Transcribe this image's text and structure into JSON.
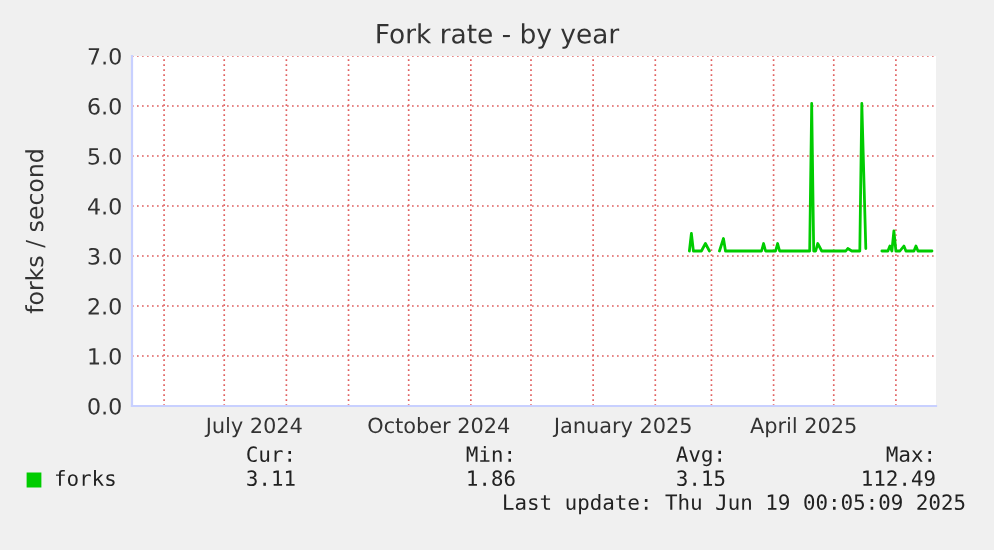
{
  "chart_data": {
    "type": "line",
    "title": "Fork rate - by year",
    "ylabel": "forks / second",
    "x": [
      "2025-02-18",
      "2025-02-19",
      "2025-02-20",
      "2025-02-24",
      "2025-02-26",
      "2025-02-28",
      "2025-03-02",
      "2025-03-05",
      "2025-03-07",
      "2025-03-08",
      "2025-03-26",
      "2025-03-27",
      "2025-03-28",
      "2025-04-02",
      "2025-04-03",
      "2025-04-04",
      "2025-04-19",
      "2025-04-20",
      "2025-04-21",
      "2025-04-22",
      "2025-04-23",
      "2025-04-25",
      "2025-05-07",
      "2025-05-08",
      "2025-05-10",
      "2025-05-14",
      "2025-05-15",
      "2025-05-17",
      "2025-05-18",
      "2025-05-25",
      "2025-05-28",
      "2025-05-29",
      "2025-05-30",
      "2025-05-31",
      "2025-06-01",
      "2025-06-03",
      "2025-06-05",
      "2025-06-06",
      "2025-06-10",
      "2025-06-11",
      "2025-06-12",
      "2025-06-19"
    ],
    "series": [
      {
        "name": "forks",
        "color": "#00cc00",
        "values": [
          3.1,
          3.45,
          3.1,
          3.1,
          3.25,
          3.1,
          null,
          3.1,
          3.35,
          3.1,
          3.1,
          3.25,
          3.1,
          3.1,
          3.25,
          3.1,
          3.1,
          6.05,
          3.1,
          3.1,
          3.25,
          3.1,
          3.1,
          3.15,
          3.1,
          3.1,
          6.05,
          3.15,
          null,
          3.1,
          3.1,
          3.2,
          3.1,
          3.5,
          3.1,
          3.1,
          3.2,
          3.1,
          3.1,
          3.2,
          3.1,
          3.1
        ]
      }
    ],
    "xlim": [
      "2024-05-16",
      "2025-06-21"
    ],
    "xticks": [
      {
        "value": "2024-06-01",
        "label": null
      },
      {
        "value": "2024-07-01",
        "label": null
      },
      {
        "value": "2024-07-16",
        "label": "July 2024"
      },
      {
        "value": "2024-08-01",
        "label": null
      },
      {
        "value": "2024-09-01",
        "label": null
      },
      {
        "value": "2024-10-01",
        "label": null
      },
      {
        "value": "2024-10-16",
        "label": "October 2024"
      },
      {
        "value": "2024-11-01",
        "label": null
      },
      {
        "value": "2024-12-01",
        "label": null
      },
      {
        "value": "2025-01-01",
        "label": null
      },
      {
        "value": "2025-01-16",
        "label": "January 2025"
      },
      {
        "value": "2025-02-01",
        "label": null
      },
      {
        "value": "2025-03-01",
        "label": null
      },
      {
        "value": "2025-04-01",
        "label": null
      },
      {
        "value": "2025-04-16",
        "label": "April 2025"
      },
      {
        "value": "2025-05-01",
        "label": null
      },
      {
        "value": "2025-06-01",
        "label": null
      }
    ],
    "ylim": [
      0,
      7
    ],
    "yticks": [
      {
        "value": 0,
        "label": "0.0"
      },
      {
        "value": 1,
        "label": "1.0"
      },
      {
        "value": 2,
        "label": "2.0"
      },
      {
        "value": 3,
        "label": "3.0"
      },
      {
        "value": 4,
        "label": "4.0"
      },
      {
        "value": 5,
        "label": "5.0"
      },
      {
        "value": 6,
        "label": "6.0"
      },
      {
        "value": 7,
        "label": "7.0"
      }
    ],
    "grid": true,
    "legend": "bottom left",
    "marker": "none",
    "line_style": "solid",
    "annotations": [
      "Cur:",
      "Min:",
      "Avg:",
      "Max:",
      "3.11",
      "1.86",
      "3.15",
      "112.49",
      "Last update: Thu Jun 19 00:05:09 2025"
    ]
  }
}
